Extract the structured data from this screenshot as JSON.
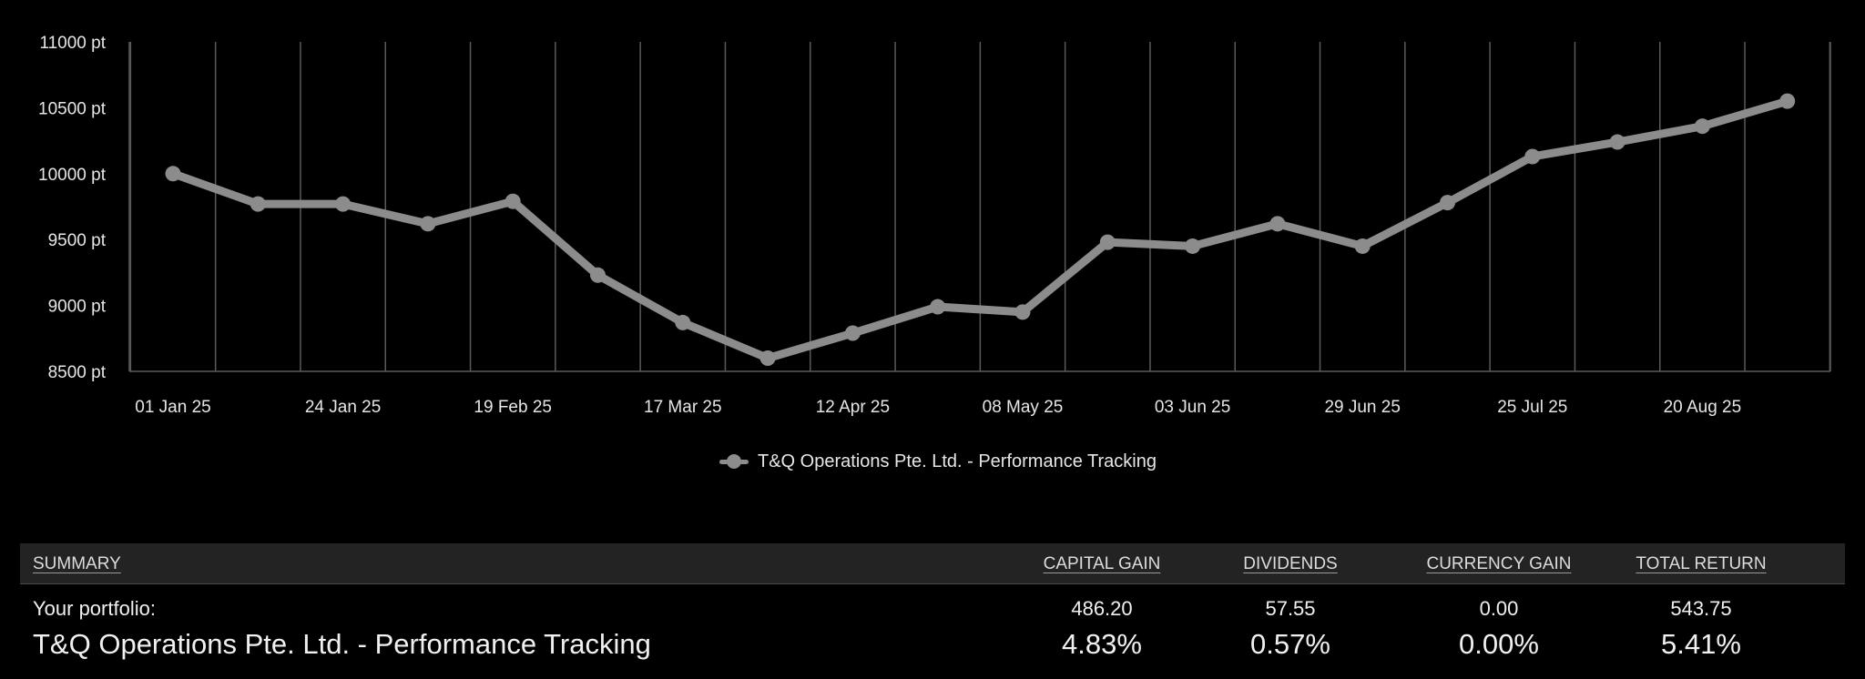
{
  "chart_data": {
    "type": "line",
    "x": [
      "01 Jan 25",
      "14 Jan 25",
      "24 Jan 25",
      "06 Feb 25",
      "19 Feb 25",
      "04 Mar 25",
      "17 Mar 25",
      "31 Mar 25",
      "12 Apr 25",
      "25 Apr 25",
      "08 May 25",
      "21 May 25",
      "03 Jun 25",
      "16 Jun 25",
      "29 Jun 25",
      "12 Jul 25",
      "25 Jul 25",
      "07 Aug 25",
      "20 Aug 25",
      "02 Sep 25"
    ],
    "x_tick_labels": [
      "01 Jan 25",
      "24 Jan 25",
      "19 Feb 25",
      "17 Mar 25",
      "12 Apr 25",
      "08 May 25",
      "03 Jun 25",
      "29 Jun 25",
      "25 Jul 25",
      "20 Aug 25"
    ],
    "y_tick_labels": [
      "11000 pt",
      "10500 pt",
      "10000 pt",
      "9500 pt",
      "9000 pt",
      "8500 pt"
    ],
    "ylim": [
      8500,
      11000
    ],
    "grid": true,
    "legend_position": "bottom-center",
    "series": [
      {
        "name": "T&Q Operations Pte. Ltd. - Performance Tracking",
        "color": "#8c8c8c",
        "values": [
          10000,
          9770,
          9770,
          9620,
          9790,
          9230,
          8870,
          8600,
          8790,
          8990,
          8950,
          9480,
          9450,
          9620,
          9450,
          9780,
          10130,
          10240,
          10360,
          10550
        ]
      }
    ]
  },
  "legend": {
    "label": "T&Q Operations Pte. Ltd. - Performance Tracking"
  },
  "summary": {
    "headers": {
      "label": "SUMMARY",
      "capital_gain": "CAPITAL GAIN",
      "dividends": "DIVIDENDS",
      "currency_gain": "CURRENCY GAIN",
      "total_return": "TOTAL RETURN"
    },
    "portfolio": {
      "label": "Your portfolio:",
      "capital_gain": "486.20",
      "dividends": "57.55",
      "currency_gain": "0.00",
      "total_return": "543.75"
    },
    "tracking": {
      "label": "T&Q Operations Pte. Ltd. - Performance Tracking",
      "capital_gain": "4.83%",
      "dividends": "0.57%",
      "currency_gain": "0.00%",
      "total_return": "5.41%"
    }
  },
  "colors": {
    "background": "#000000",
    "series": "#8c8c8c",
    "grid": "#5a5a5a",
    "header_bg": "#232323"
  }
}
